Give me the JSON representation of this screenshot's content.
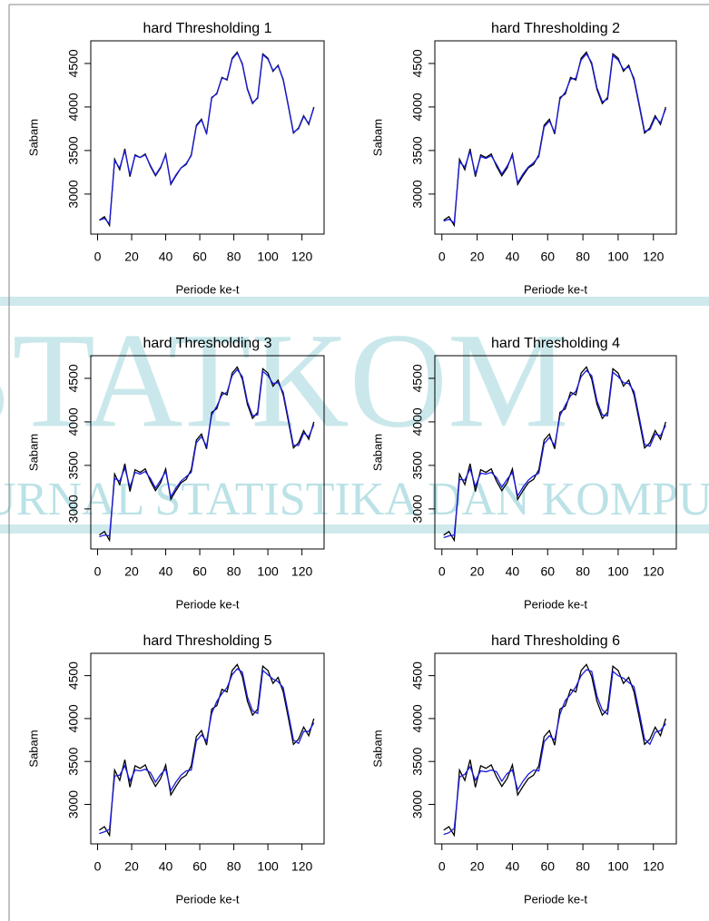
{
  "watermark": {
    "title": "STATKOM",
    "subtitle": "JURNAL STATISTIKA DAN KOMPUTASI"
  },
  "chart_data": [
    {
      "type": "line",
      "title": "hard Thresholding 1",
      "x_label": "Periode ke-t",
      "y_label": "Sabam",
      "x": [
        1,
        4,
        7,
        10,
        13,
        16,
        19,
        22,
        25,
        28,
        31,
        34,
        37,
        40,
        43,
        46,
        49,
        52,
        55,
        58,
        61,
        64,
        67,
        70,
        73,
        76,
        79,
        82,
        85,
        88,
        91,
        94,
        97,
        100,
        103,
        106,
        109,
        112,
        115,
        118,
        121,
        124,
        127
      ],
      "series": [
        {
          "color": "#000000",
          "values": [
            2700,
            2740,
            2640,
            3400,
            3280,
            3520,
            3200,
            3450,
            3420,
            3460,
            3320,
            3210,
            3300,
            3460,
            3110,
            3210,
            3300,
            3340,
            3450,
            3790,
            3860,
            3690,
            4110,
            4150,
            4340,
            4310,
            4560,
            4630,
            4490,
            4200,
            4040,
            4110,
            4610,
            4560,
            4410,
            4480,
            4310,
            4010,
            3700,
            3760,
            3900,
            3800,
            4000
          ]
        },
        {
          "color": "#1a1adc",
          "values": [
            2700,
            2720,
            2660,
            3380,
            3300,
            3500,
            3220,
            3440,
            3420,
            3450,
            3330,
            3220,
            3310,
            3450,
            3120,
            3220,
            3300,
            3350,
            3440,
            3780,
            3850,
            3700,
            4100,
            4160,
            4330,
            4320,
            4550,
            4620,
            4500,
            4210,
            4050,
            4100,
            4600,
            4550,
            4420,
            4470,
            4320,
            4020,
            3710,
            3750,
            3890,
            3810,
            3990
          ]
        }
      ],
      "xlim": [
        -4,
        133
      ],
      "ylim": [
        2540,
        4760
      ],
      "xticks": [
        0,
        20,
        40,
        60,
        80,
        100,
        120
      ],
      "yticks": [
        3000,
        3500,
        4000,
        4500
      ]
    },
    {
      "type": "line",
      "title": "hard Thresholding 2",
      "x_label": "Periode ke-t",
      "y_label": "Sabam",
      "x": [
        1,
        4,
        7,
        10,
        13,
        16,
        19,
        22,
        25,
        28,
        31,
        34,
        37,
        40,
        43,
        46,
        49,
        52,
        55,
        58,
        61,
        64,
        67,
        70,
        73,
        76,
        79,
        82,
        85,
        88,
        91,
        94,
        97,
        100,
        103,
        106,
        109,
        112,
        115,
        118,
        121,
        124,
        127
      ],
      "series": [
        {
          "color": "#000000",
          "values": [
            2700,
            2740,
            2640,
            3400,
            3280,
            3520,
            3200,
            3450,
            3420,
            3460,
            3320,
            3210,
            3300,
            3460,
            3110,
            3210,
            3300,
            3340,
            3450,
            3790,
            3860,
            3690,
            4110,
            4150,
            4340,
            4310,
            4560,
            4630,
            4490,
            4200,
            4040,
            4110,
            4610,
            4560,
            4410,
            4480,
            4310,
            4010,
            3700,
            3760,
            3900,
            3800,
            4000
          ]
        },
        {
          "color": "#1a1adc",
          "values": [
            2690,
            2710,
            2670,
            3370,
            3310,
            3490,
            3230,
            3430,
            3410,
            3440,
            3340,
            3230,
            3320,
            3440,
            3130,
            3230,
            3310,
            3360,
            3430,
            3770,
            3840,
            3710,
            4090,
            4170,
            4320,
            4330,
            4540,
            4610,
            4510,
            4220,
            4060,
            4090,
            4590,
            4540,
            4430,
            4460,
            4330,
            4030,
            3720,
            3740,
            3880,
            3820,
            3980
          ]
        }
      ],
      "xlim": [
        -4,
        133
      ],
      "ylim": [
        2540,
        4760
      ],
      "xticks": [
        0,
        20,
        40,
        60,
        80,
        100,
        120
      ],
      "yticks": [
        3000,
        3500,
        4000,
        4500
      ]
    },
    {
      "type": "line",
      "title": "hard Thresholding 3",
      "x_label": "Periode ke-t",
      "y_label": "Sabam",
      "x": [
        1,
        4,
        7,
        10,
        13,
        16,
        19,
        22,
        25,
        28,
        31,
        34,
        37,
        40,
        43,
        46,
        49,
        52,
        55,
        58,
        61,
        64,
        67,
        70,
        73,
        76,
        79,
        82,
        85,
        88,
        91,
        94,
        97,
        100,
        103,
        106,
        109,
        112,
        115,
        118,
        121,
        124,
        127
      ],
      "series": [
        {
          "color": "#000000",
          "values": [
            2700,
            2740,
            2640,
            3400,
            3280,
            3520,
            3200,
            3450,
            3420,
            3460,
            3320,
            3210,
            3300,
            3460,
            3110,
            3210,
            3300,
            3340,
            3450,
            3790,
            3860,
            3690,
            4110,
            4150,
            4340,
            4310,
            4560,
            4630,
            4490,
            4200,
            4040,
            4110,
            4610,
            4560,
            4410,
            4480,
            4310,
            4010,
            3700,
            3760,
            3900,
            3800,
            4000
          ]
        },
        {
          "color": "#1a1adc",
          "values": [
            2680,
            2700,
            2690,
            3350,
            3320,
            3470,
            3250,
            3420,
            3400,
            3430,
            3350,
            3240,
            3330,
            3430,
            3140,
            3240,
            3320,
            3370,
            3420,
            3760,
            3830,
            3720,
            4080,
            4180,
            4310,
            4340,
            4530,
            4600,
            4520,
            4230,
            4070,
            4080,
            4580,
            4530,
            4440,
            4450,
            4340,
            4040,
            3730,
            3730,
            3870,
            3830,
            3970
          ]
        }
      ],
      "xlim": [
        -4,
        133
      ],
      "ylim": [
        2540,
        4760
      ],
      "xticks": [
        0,
        20,
        40,
        60,
        80,
        100,
        120
      ],
      "yticks": [
        3000,
        3500,
        4000,
        4500
      ]
    },
    {
      "type": "line",
      "title": "hard Thresholding 4",
      "x_label": "Periode ke-t",
      "y_label": "Sabam",
      "x": [
        1,
        4,
        7,
        10,
        13,
        16,
        19,
        22,
        25,
        28,
        31,
        34,
        37,
        40,
        43,
        46,
        49,
        52,
        55,
        58,
        61,
        64,
        67,
        70,
        73,
        76,
        79,
        82,
        85,
        88,
        91,
        94,
        97,
        100,
        103,
        106,
        109,
        112,
        115,
        118,
        121,
        124,
        127
      ],
      "series": [
        {
          "color": "#000000",
          "values": [
            2700,
            2740,
            2640,
            3400,
            3280,
            3520,
            3200,
            3450,
            3420,
            3460,
            3320,
            3210,
            3300,
            3460,
            3110,
            3210,
            3300,
            3340,
            3450,
            3790,
            3860,
            3690,
            4110,
            4150,
            4340,
            4310,
            4560,
            4630,
            4490,
            4200,
            4040,
            4110,
            4610,
            4560,
            4410,
            4480,
            4310,
            4010,
            3700,
            3760,
            3900,
            3800,
            4000
          ]
        },
        {
          "color": "#1a1adc",
          "values": [
            2670,
            2690,
            2700,
            3340,
            3330,
            3460,
            3260,
            3410,
            3400,
            3420,
            3360,
            3250,
            3340,
            3420,
            3150,
            3250,
            3330,
            3380,
            3410,
            3750,
            3820,
            3730,
            4070,
            4190,
            4300,
            4350,
            4520,
            4590,
            4530,
            4240,
            4080,
            4070,
            4570,
            4520,
            4450,
            4440,
            4350,
            4050,
            3740,
            3720,
            3860,
            3840,
            3960
          ]
        }
      ],
      "xlim": [
        -4,
        133
      ],
      "ylim": [
        2540,
        4760
      ],
      "xticks": [
        0,
        20,
        40,
        60,
        80,
        100,
        120
      ],
      "yticks": [
        3000,
        3500,
        4000,
        4500
      ]
    },
    {
      "type": "line",
      "title": "hard Thresholding 5",
      "x_label": "Periode ke-t",
      "y_label": "Sabam",
      "x": [
        1,
        4,
        7,
        10,
        13,
        16,
        19,
        22,
        25,
        28,
        31,
        34,
        37,
        40,
        43,
        46,
        49,
        52,
        55,
        58,
        61,
        64,
        67,
        70,
        73,
        76,
        79,
        82,
        85,
        88,
        91,
        94,
        97,
        100,
        103,
        106,
        109,
        112,
        115,
        118,
        121,
        124,
        127
      ],
      "series": [
        {
          "color": "#000000",
          "values": [
            2700,
            2740,
            2640,
            3400,
            3280,
            3520,
            3200,
            3450,
            3420,
            3460,
            3320,
            3210,
            3300,
            3460,
            3110,
            3210,
            3300,
            3340,
            3450,
            3790,
            3860,
            3690,
            4110,
            4150,
            4340,
            4310,
            4560,
            4630,
            4490,
            4200,
            4040,
            4110,
            4610,
            4560,
            4410,
            4480,
            4310,
            4010,
            3700,
            3760,
            3900,
            3800,
            4000
          ]
        },
        {
          "color": "#1a1adc",
          "values": [
            2660,
            2680,
            2710,
            3330,
            3340,
            3450,
            3270,
            3400,
            3390,
            3410,
            3370,
            3260,
            3350,
            3410,
            3160,
            3260,
            3340,
            3390,
            3400,
            3740,
            3810,
            3740,
            4060,
            4200,
            4290,
            4360,
            4510,
            4580,
            4540,
            4250,
            4090,
            4060,
            4560,
            4510,
            4460,
            4430,
            4360,
            4060,
            3750,
            3710,
            3850,
            3850,
            3950
          ]
        }
      ],
      "xlim": [
        -4,
        133
      ],
      "ylim": [
        2540,
        4760
      ],
      "xticks": [
        0,
        20,
        40,
        60,
        80,
        100,
        120
      ],
      "yticks": [
        3000,
        3500,
        4000,
        4500
      ]
    },
    {
      "type": "line",
      "title": "hard Thresholding 6",
      "x_label": "Periode ke-t",
      "y_label": "Sabam",
      "x": [
        1,
        4,
        7,
        10,
        13,
        16,
        19,
        22,
        25,
        28,
        31,
        34,
        37,
        40,
        43,
        46,
        49,
        52,
        55,
        58,
        61,
        64,
        67,
        70,
        73,
        76,
        79,
        82,
        85,
        88,
        91,
        94,
        97,
        100,
        103,
        106,
        109,
        112,
        115,
        118,
        121,
        124,
        127
      ],
      "series": [
        {
          "color": "#000000",
          "values": [
            2700,
            2740,
            2640,
            3400,
            3280,
            3520,
            3200,
            3450,
            3420,
            3460,
            3320,
            3210,
            3300,
            3460,
            3110,
            3210,
            3300,
            3340,
            3450,
            3790,
            3860,
            3690,
            4110,
            4150,
            4340,
            4310,
            4560,
            4630,
            4490,
            4200,
            4040,
            4110,
            4610,
            4560,
            4410,
            4480,
            4310,
            4010,
            3700,
            3760,
            3900,
            3800,
            4000
          ]
        },
        {
          "color": "#1a1adc",
          "values": [
            2650,
            2670,
            2720,
            3320,
            3350,
            3440,
            3280,
            3390,
            3380,
            3400,
            3380,
            3270,
            3360,
            3400,
            3170,
            3270,
            3350,
            3400,
            3390,
            3730,
            3800,
            3750,
            4050,
            4210,
            4280,
            4370,
            4500,
            4570,
            4550,
            4260,
            4100,
            4050,
            4550,
            4500,
            4470,
            4420,
            4370,
            4070,
            3760,
            3700,
            3840,
            3860,
            3940
          ]
        }
      ],
      "xlim": [
        -4,
        133
      ],
      "ylim": [
        2540,
        4760
      ],
      "xticks": [
        0,
        20,
        40,
        60,
        80,
        100,
        120
      ],
      "yticks": [
        3000,
        3500,
        4000,
        4500
      ]
    }
  ]
}
